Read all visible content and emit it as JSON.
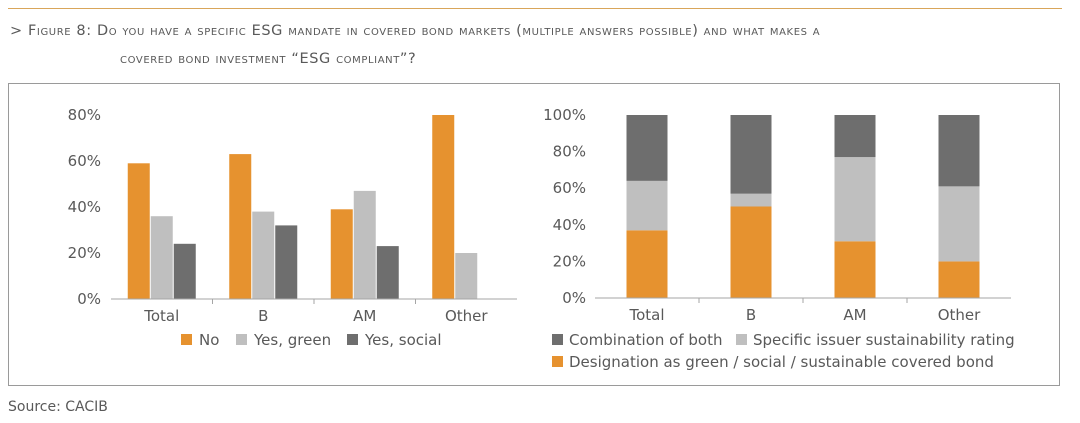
{
  "header": {
    "prefix": "> ",
    "figure_label": "Figure 8:",
    "title_line1": "Do you have a specific ESG mandate in covered bond markets (multiple answers possible) and what makes a",
    "title_line2": "covered bond investment “ESG compliant”?"
  },
  "footer": {
    "source": "Source: CACIB"
  },
  "colors": {
    "orange": "#e6922f",
    "light_gray": "#bfbfbf",
    "dark_gray": "#6e6e6e",
    "axis": "#a6a6a6"
  },
  "chart_data": [
    {
      "type": "bar",
      "title": "",
      "categories": [
        "Total",
        "B",
        "AM",
        "Other"
      ],
      "series": [
        {
          "name": "No",
          "color": "#e6922f",
          "values": [
            59,
            63,
            39,
            80
          ]
        },
        {
          "name": "Yes, green",
          "color": "#bfbfbf",
          "values": [
            36,
            38,
            47,
            20
          ]
        },
        {
          "name": "Yes, social",
          "color": "#6e6e6e",
          "values": [
            24,
            32,
            23,
            null
          ]
        }
      ],
      "ylim": [
        0,
        80
      ],
      "yticks": [
        "0%",
        "20%",
        "40%",
        "60%",
        "80%"
      ],
      "ytick_values": [
        0,
        20,
        40,
        60,
        80
      ],
      "legend": "bottom"
    },
    {
      "type": "stacked-bar",
      "title": "",
      "categories": [
        "Total",
        "B",
        "AM",
        "Other"
      ],
      "series": [
        {
          "name": "Designation as green / social / sustainable covered bond",
          "color": "#e6922f",
          "values": [
            37,
            50,
            31,
            20
          ]
        },
        {
          "name": "Specific issuer sustainability rating",
          "color": "#bfbfbf",
          "values": [
            27,
            7,
            46,
            41
          ]
        },
        {
          "name": "Combination of both",
          "color": "#6e6e6e",
          "values": [
            36,
            43,
            23,
            39
          ]
        }
      ],
      "ylim": [
        0,
        100
      ],
      "yticks": [
        "0%",
        "20%",
        "40%",
        "60%",
        "80%",
        "100%"
      ],
      "ytick_values": [
        0,
        20,
        40,
        60,
        80,
        100
      ],
      "legend": "bottom"
    }
  ]
}
